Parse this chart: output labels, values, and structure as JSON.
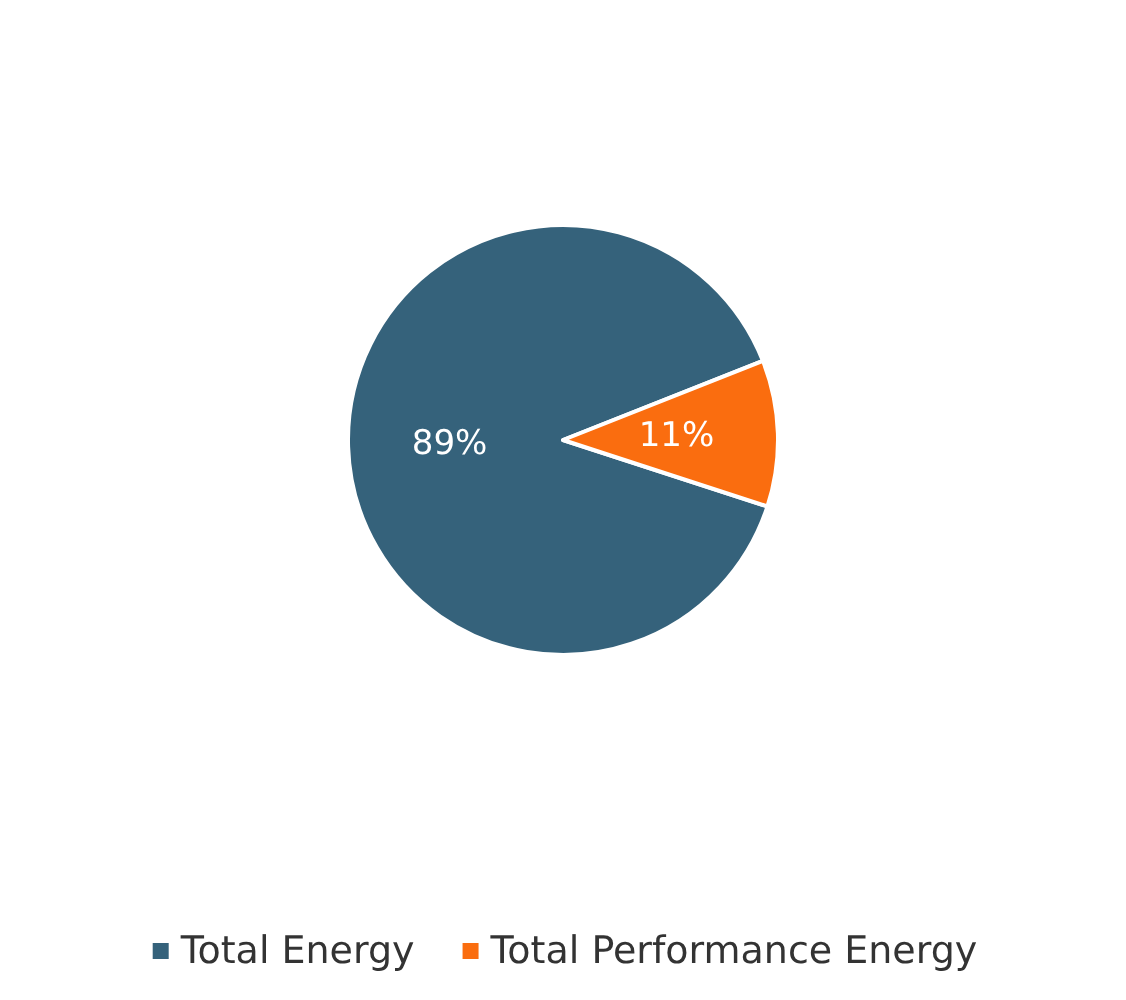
{
  "chart_data": {
    "type": "pie",
    "categories": [
      "Total Energy",
      "Total Performance Energy"
    ],
    "values": [
      89,
      11
    ],
    "colors": [
      "#35627b",
      "#fa6d0f"
    ],
    "value_labels": [
      "89%",
      "11%"
    ],
    "legend": "bottom"
  }
}
